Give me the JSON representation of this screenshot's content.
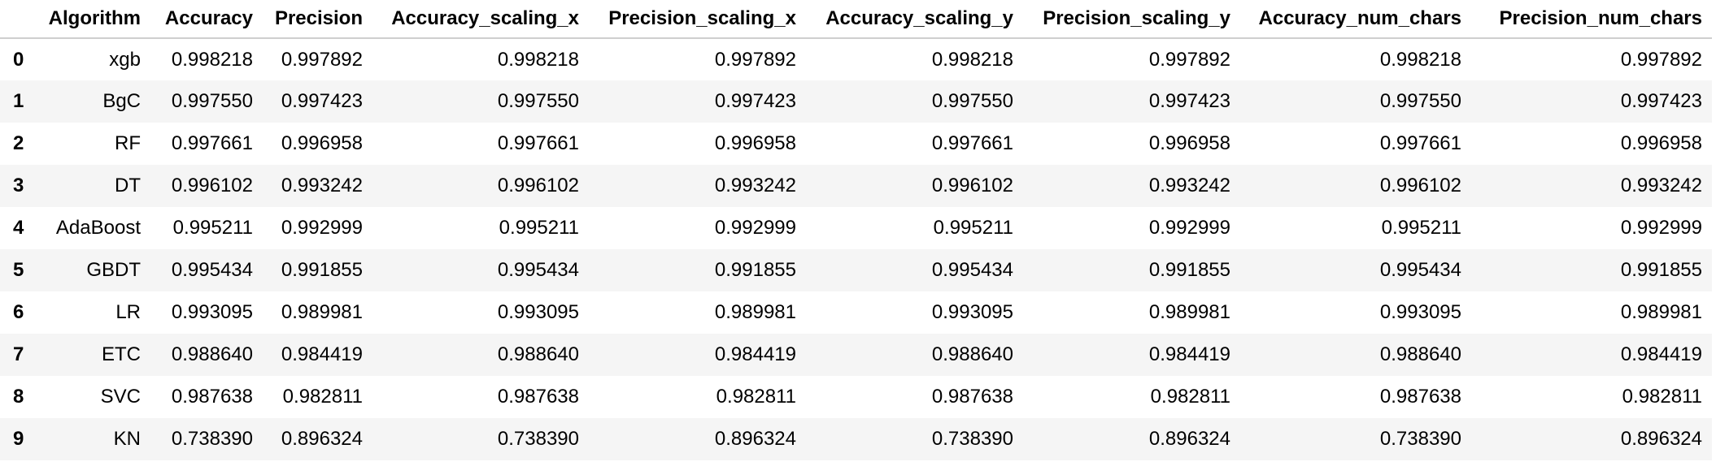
{
  "table": {
    "columns": [
      "",
      "Algorithm",
      "Accuracy",
      "Precision",
      "Accuracy_scaling_x",
      "Precision_scaling_x",
      "Accuracy_scaling_y",
      "Precision_scaling_y",
      "Accuracy_num_chars",
      "Precision_num_chars"
    ],
    "rows": [
      [
        "0",
        "xgb",
        "0.998218",
        "0.997892",
        "0.998218",
        "0.997892",
        "0.998218",
        "0.997892",
        "0.998218",
        "0.997892"
      ],
      [
        "1",
        "BgC",
        "0.997550",
        "0.997423",
        "0.997550",
        "0.997423",
        "0.997550",
        "0.997423",
        "0.997550",
        "0.997423"
      ],
      [
        "2",
        "RF",
        "0.997661",
        "0.996958",
        "0.997661",
        "0.996958",
        "0.997661",
        "0.996958",
        "0.997661",
        "0.996958"
      ],
      [
        "3",
        "DT",
        "0.996102",
        "0.993242",
        "0.996102",
        "0.993242",
        "0.996102",
        "0.993242",
        "0.996102",
        "0.993242"
      ],
      [
        "4",
        "AdaBoost",
        "0.995211",
        "0.992999",
        "0.995211",
        "0.992999",
        "0.995211",
        "0.992999",
        "0.995211",
        "0.992999"
      ],
      [
        "5",
        "GBDT",
        "0.995434",
        "0.991855",
        "0.995434",
        "0.991855",
        "0.995434",
        "0.991855",
        "0.995434",
        "0.991855"
      ],
      [
        "6",
        "LR",
        "0.993095",
        "0.989981",
        "0.993095",
        "0.989981",
        "0.993095",
        "0.989981",
        "0.993095",
        "0.989981"
      ],
      [
        "7",
        "ETC",
        "0.988640",
        "0.984419",
        "0.988640",
        "0.984419",
        "0.988640",
        "0.984419",
        "0.988640",
        "0.984419"
      ],
      [
        "8",
        "SVC",
        "0.987638",
        "0.982811",
        "0.987638",
        "0.982811",
        "0.987638",
        "0.982811",
        "0.987638",
        "0.982811"
      ],
      [
        "9",
        "KN",
        "0.738390",
        "0.896324",
        "0.738390",
        "0.896324",
        "0.738390",
        "0.896324",
        "0.738390",
        "0.896324"
      ]
    ]
  }
}
